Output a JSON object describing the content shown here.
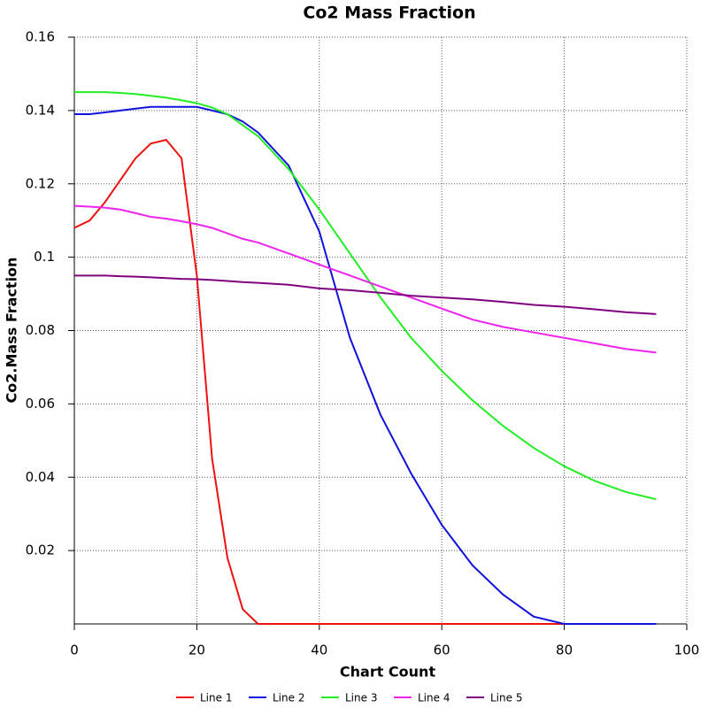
{
  "chart_data": {
    "type": "line",
    "title": "Co2 Mass Fraction",
    "x_label": "Chart Count",
    "y_label": "Co2.Mass Fraction",
    "x": [
      0,
      2.5,
      5,
      7.5,
      10,
      12.5,
      15,
      17.5,
      20,
      22.5,
      25,
      27.5,
      30,
      35,
      40,
      45,
      50,
      55,
      60,
      65,
      70,
      75,
      80,
      85,
      90,
      95
    ],
    "series": [
      {
        "name": "Line 1",
        "color": "#ee1111",
        "values": [
          0.108,
          0.11,
          0.115,
          0.121,
          0.127,
          0.131,
          0.132,
          0.127,
          0.095,
          0.045,
          0.018,
          0.004,
          0,
          0,
          0,
          0,
          0,
          0,
          0,
          0,
          0,
          0,
          0,
          0,
          0,
          0
        ]
      },
      {
        "name": "Line 2",
        "color": "#1111dd",
        "values": [
          0.139,
          0.139,
          0.1395,
          0.14,
          0.1405,
          0.141,
          0.141,
          0.141,
          0.141,
          0.14,
          0.139,
          0.137,
          0.134,
          0.125,
          0.107,
          0.078,
          0.057,
          0.041,
          0.027,
          0.016,
          0.008,
          0.002,
          0,
          0,
          0,
          0
        ]
      },
      {
        "name": "Line 3",
        "color": "#22ee22",
        "values": [
          0.145,
          0.145,
          0.145,
          0.1448,
          0.1445,
          0.144,
          0.1435,
          0.1428,
          0.142,
          0.1408,
          0.139,
          0.136,
          0.133,
          0.124,
          0.113,
          0.101,
          0.089,
          0.078,
          0.069,
          0.061,
          0.054,
          0.048,
          0.043,
          0.039,
          0.036,
          0.034
        ]
      },
      {
        "name": "Line 4",
        "color": "#ee22ee",
        "values": [
          0.114,
          0.1138,
          0.1135,
          0.113,
          0.112,
          0.111,
          0.1105,
          0.1098,
          0.109,
          0.108,
          0.1065,
          0.105,
          0.104,
          0.101,
          0.098,
          0.095,
          0.092,
          0.089,
          0.086,
          0.083,
          0.081,
          0.0795,
          0.078,
          0.0765,
          0.075,
          0.074
        ]
      },
      {
        "name": "Line 5",
        "color": "#800080",
        "values": [
          0.095,
          0.095,
          0.095,
          0.0948,
          0.0947,
          0.0945,
          0.0943,
          0.0941,
          0.094,
          0.0938,
          0.0935,
          0.0932,
          0.093,
          0.0925,
          0.0915,
          0.091,
          0.0903,
          0.0895,
          0.089,
          0.0885,
          0.0878,
          0.087,
          0.0865,
          0.0858,
          0.085,
          0.0845
        ]
      }
    ],
    "xlim": [
      0,
      100
    ],
    "xticks": [
      0,
      20,
      40,
      60,
      80,
      100
    ],
    "ylim": [
      0,
      0.16
    ],
    "yticks": [
      0.02,
      0.04,
      0.06,
      0.08,
      0.1,
      0.12,
      0.14,
      0.16
    ],
    "grid": true,
    "legend": "bottom"
  }
}
